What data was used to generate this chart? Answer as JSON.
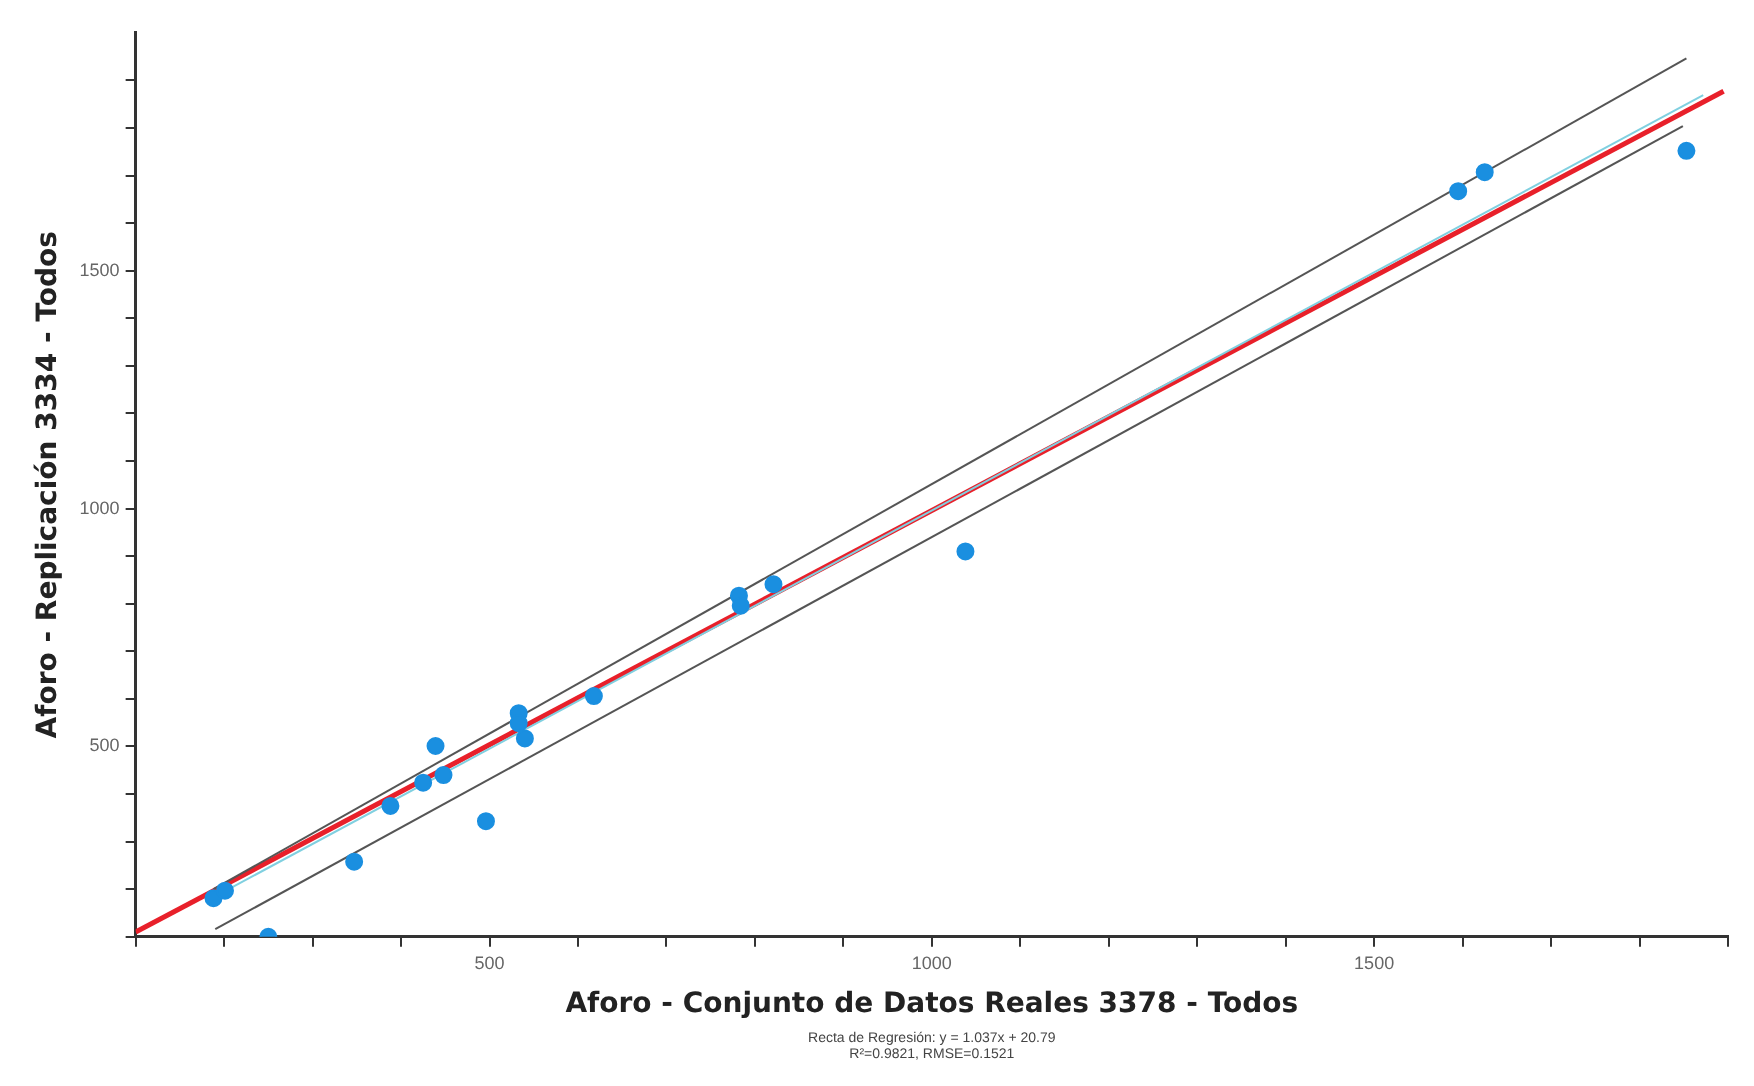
{
  "chart_data": {
    "type": "scatter",
    "xlabel": "Aforo - Conjunto de Datos Reales 3378 - Todos",
    "ylabel": "Aforo - Replicación 3334 - Todos",
    "annotations": [
      "Recta de Regresión: y = 1.037x + 20.79",
      "R²=0.9821, RMSE=0.1521"
    ],
    "series": [
      {
        "type": "scatter",
        "color": "#1a8fe0",
        "marker": "circle",
        "x": [
          188,
          201,
          250,
          347,
          388,
          425,
          439,
          448,
          496,
          533,
          533,
          540,
          618,
          782,
          784,
          821,
          1038,
          1595,
          1625,
          1853
        ],
        "values": [
          181,
          197,
          100,
          258,
          375,
          424,
          501,
          440,
          343,
          570,
          549,
          517,
          606,
          817,
          796,
          841,
          910,
          1667,
          1707,
          1752
        ]
      },
      {
        "type": "line",
        "color": "#555555",
        "marker": "none",
        "x": [
          188,
          1853
        ],
        "values": [
          200,
          1946
        ]
      },
      {
        "type": "line",
        "color": "#555555",
        "marker": "none",
        "x": [
          190,
          1849
        ],
        "values": [
          116,
          1804
        ]
      },
      {
        "type": "line",
        "color": "#80d0e0",
        "marker": "none",
        "x": [
          190,
          1872
        ],
        "values": [
          185,
          1869
        ]
      },
      {
        "type": "line",
        "color": "#e8202a",
        "marker": "none",
        "x": [
          100,
          1895
        ],
        "values": [
          110,
          1877
        ]
      }
    ],
    "xlim": [
      100,
      1900
    ],
    "xticks": [
      {
        "value": 100,
        "label": null
      },
      {
        "value": 200,
        "label": null
      },
      {
        "value": 300,
        "label": null
      },
      {
        "value": 400,
        "label": null
      },
      500,
      {
        "value": 600,
        "label": null
      },
      {
        "value": 700,
        "label": null
      },
      {
        "value": 800,
        "label": null
      },
      {
        "value": 900,
        "label": null
      },
      1000,
      {
        "value": 1100,
        "label": null
      },
      {
        "value": 1200,
        "label": null
      },
      {
        "value": 1300,
        "label": null
      },
      {
        "value": 1400,
        "label": null
      },
      1500,
      {
        "value": 1600,
        "label": null
      },
      {
        "value": 1700,
        "label": null
      },
      {
        "value": 1800,
        "label": null
      },
      {
        "value": 1900,
        "label": null
      }
    ],
    "ylim": [
      100,
      2000
    ],
    "yticks": [
      {
        "value": 100,
        "label": null
      },
      {
        "value": 200,
        "label": null
      },
      {
        "value": 300,
        "label": null
      },
      {
        "value": 400,
        "label": null
      },
      500,
      {
        "value": 600,
        "label": null
      },
      {
        "value": 700,
        "label": null
      },
      {
        "value": 800,
        "label": null
      },
      {
        "value": 900,
        "label": null
      },
      1000,
      {
        "value": 1100,
        "label": null
      },
      {
        "value": 1200,
        "label": null
      },
      {
        "value": 1300,
        "label": null
      },
      {
        "value": 1400,
        "label": null
      },
      1500,
      {
        "value": 1600,
        "label": null
      },
      {
        "value": 1700,
        "label": null
      },
      {
        "value": 1800,
        "label": null
      },
      {
        "value": 1900,
        "label": null
      }
    ],
    "grid": false,
    "legend": false
  }
}
